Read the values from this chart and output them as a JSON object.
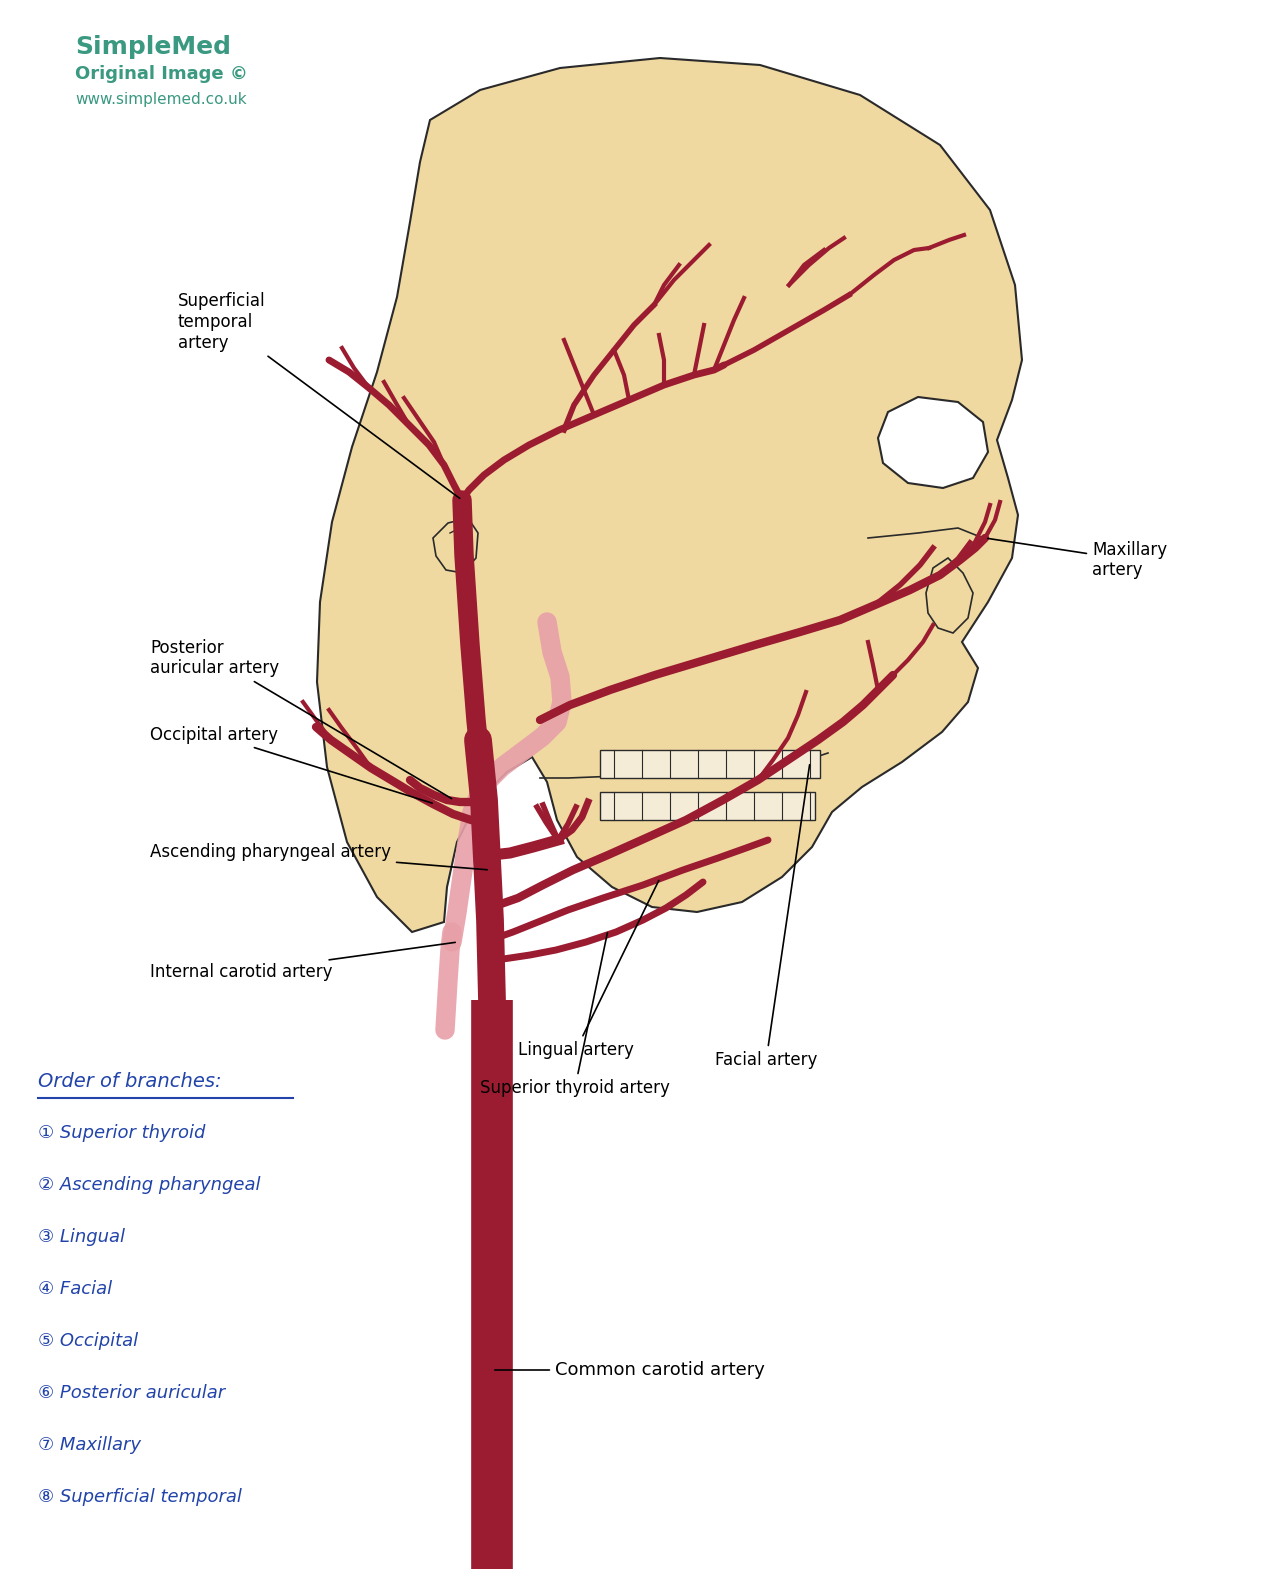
{
  "bg_color": "#ffffff",
  "skull_color": "#f0d9a0",
  "artery_color": "#9b1c31",
  "artery_light": "#e8a0a8",
  "outline_color": "#2a2a2a",
  "text_color": "#000000",
  "blue_color": "#2244aa",
  "teal_color": "#3a9980",
  "mnemonic_title": "Order of branches:",
  "mnemonic_items": [
    "① Superior thyroid",
    "② Ascending pharyngeal",
    "③ Lingual",
    "④ Facial",
    "⑤ Occipital",
    "⑥ Posterior auricular",
    "⑦ Maxillary",
    "⑧ Superficial temporal"
  ]
}
